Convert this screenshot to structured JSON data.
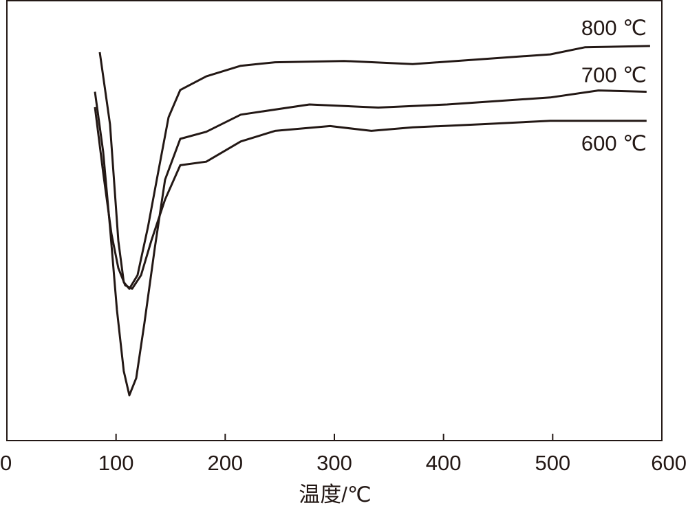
{
  "chart_data": {
    "type": "line",
    "xlabel": "温度/℃",
    "xlim": [
      0,
      600
    ],
    "xticks": [
      0,
      100,
      200,
      300,
      400,
      500,
      600
    ],
    "ylim": [
      0,
      100
    ],
    "series": [
      {
        "name": "800 ℃",
        "color": "#231815",
        "x": [
          85.1,
          94.5,
          102.1,
          107.1,
          112.2,
          119.7,
          129.2,
          138.6,
          148.1,
          158.8,
          182.7,
          214.2,
          245.7,
          308.8,
          371.8,
          434.8,
          497.8,
          529.4,
          589.2
        ],
        "values": [
          88.3,
          71.9,
          45.4,
          36.0,
          34.5,
          37.6,
          48.5,
          61.0,
          73.5,
          79.7,
          82.8,
          85.2,
          86.0,
          86.3,
          85.6,
          86.7,
          87.8,
          89.4,
          89.7
        ]
      },
      {
        "name": "700 ℃",
        "color": "#231815",
        "x": [
          80.7,
          88.2,
          94.5,
          100.8,
          107.1,
          112.2,
          118.5,
          126.0,
          135.5,
          144.9,
          158.8,
          182.7,
          214.2,
          277.2,
          340.2,
          403.3,
          497.8,
          541.9,
          586.0
        ],
        "values": [
          79.3,
          65.7,
          48.5,
          29.8,
          15.8,
          10.3,
          14.2,
          26.7,
          43.8,
          59.3,
          68.6,
          70.2,
          74.1,
          76.4,
          75.7,
          76.4,
          78.0,
          79.6,
          79.3
        ]
      },
      {
        "name": "600 ℃",
        "color": "#231815",
        "x": [
          80.7,
          88.2,
          95.8,
          102.1,
          108.4,
          114.7,
          122.9,
          132.3,
          144.9,
          158.8,
          182.7,
          214.2,
          245.7,
          296.1,
          333.9,
          371.8,
          434.8,
          497.8,
          586.0
        ],
        "values": [
          75.8,
          61.0,
          47.0,
          39.2,
          35.3,
          34.5,
          37.6,
          45.4,
          54.8,
          62.6,
          63.4,
          68.0,
          70.4,
          71.5,
          70.4,
          71.2,
          71.9,
          72.7,
          72.7
        ]
      }
    ]
  }
}
